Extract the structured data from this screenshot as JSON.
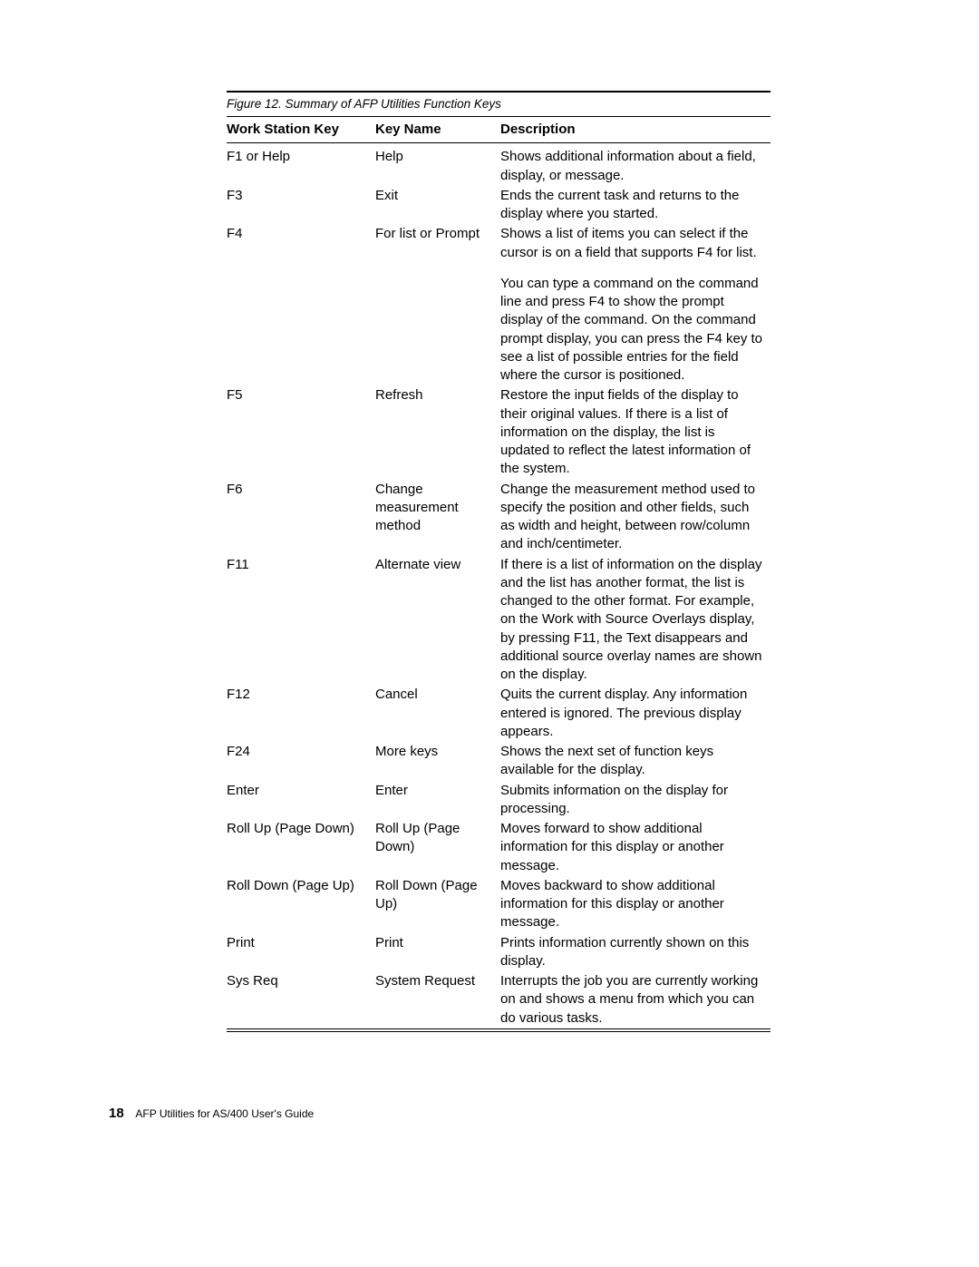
{
  "caption": "Figure 12. Summary of AFP Utilities Function Keys",
  "headers": {
    "work_station_key": "Work Station Key",
    "key_name": "Key Name",
    "description": "Description"
  },
  "rows": [
    {
      "key": "F1 or Help",
      "name": "Help",
      "desc": "Shows additional information about a field, display, or message."
    },
    {
      "key": "F3",
      "name": "Exit",
      "desc": "Ends the current task and returns to the display where you started."
    },
    {
      "key": "F4",
      "name": "For list or Prompt",
      "desc": "Shows a list of items you can select if the cursor is on a field that supports F4 for list.",
      "desc_extra": "You can type a command on the command line and press F4 to show the prompt display of the command. On the command prompt display, you can press the F4 key to see a list of possible entries for the field where the cursor is positioned."
    },
    {
      "key": "F5",
      "name": "Refresh",
      "desc": "Restore the input fields of the display to their original values.  If there is a list of information on the display, the list is updated to reflect the latest information of the system."
    },
    {
      "key": "F6",
      "name": "Change measurement method",
      "desc": "Change the measurement method used to specify the position and other fields, such as width and height, between row/column and inch/centimeter."
    },
    {
      "key": "F11",
      "name": "Alternate view",
      "desc": "If there is a list of information on the display and the list has another format, the list is changed to the other format. For example, on the Work with Source Overlays display, by pressing F11, the Text disappears and additional source overlay names are shown on the display."
    },
    {
      "key": "F12",
      "name": "Cancel",
      "desc": "Quits the current display.  Any information entered is ignored.  The previous display appears."
    },
    {
      "key": "F24",
      "name": "More keys",
      "desc": "Shows the next set of function keys available for the display."
    },
    {
      "key": "Enter",
      "name": "Enter",
      "desc": "Submits information on the display for processing."
    },
    {
      "key": "Roll Up (Page Down)",
      "name": "Roll Up (Page Down)",
      "desc": "Moves forward to show additional information for this display or another message."
    },
    {
      "key": "Roll Down (Page Up)",
      "name": "Roll Down (Page Up)",
      "desc": "Moves backward to show additional information for this display or another message."
    },
    {
      "key": "Print",
      "name": "Print",
      "desc": "Prints information currently shown on this display."
    },
    {
      "key": "Sys Req",
      "name": "System Request",
      "desc": "Interrupts the job you are currently working on and shows a menu from which you can do various tasks."
    }
  ],
  "footer": {
    "page_number": "18",
    "book_title": "AFP Utilities for AS/400 User's Guide"
  }
}
